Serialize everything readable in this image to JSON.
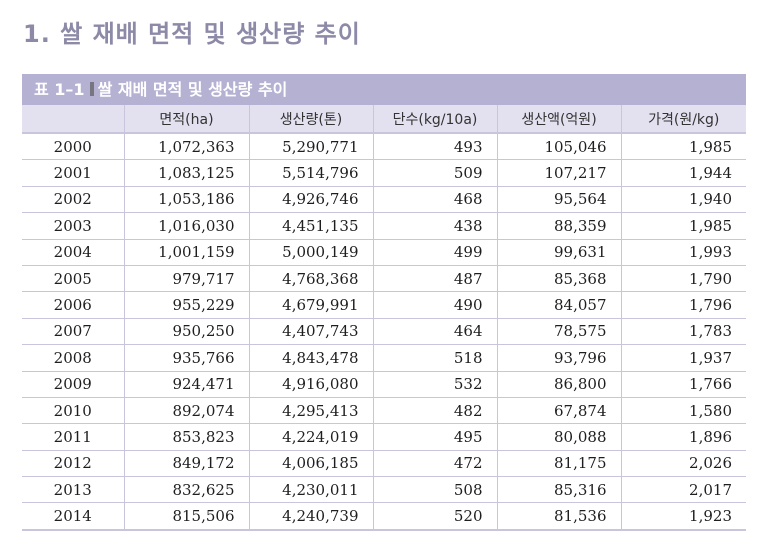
{
  "section": {
    "title": "1. 쌀 재배 면적 및 생산량 추이"
  },
  "table": {
    "label": "표 1–1",
    "title": "쌀 재배 면적 및 생산량 추이",
    "colors": {
      "caption_bg": "#b5b1d2",
      "header_bg": "#e3e1ef",
      "border": "#c8c5dd",
      "heading_text": "#8d8aa8"
    },
    "columns": [
      "",
      "면적(ha)",
      "생산량(톤)",
      "단수(kg/10a)",
      "생산액(억원)",
      "가격(원/kg)"
    ],
    "rows": [
      [
        "2000",
        "1,072,363",
        "5,290,771",
        "493",
        "105,046",
        "1,985"
      ],
      [
        "2001",
        "1,083,125",
        "5,514,796",
        "509",
        "107,217",
        "1,944"
      ],
      [
        "2002",
        "1,053,186",
        "4,926,746",
        "468",
        "95,564",
        "1,940"
      ],
      [
        "2003",
        "1,016,030",
        "4,451,135",
        "438",
        "88,359",
        "1,985"
      ],
      [
        "2004",
        "1,001,159",
        "5,000,149",
        "499",
        "99,631",
        "1,993"
      ],
      [
        "2005",
        "979,717",
        "4,768,368",
        "487",
        "85,368",
        "1,790"
      ],
      [
        "2006",
        "955,229",
        "4,679,991",
        "490",
        "84,057",
        "1,796"
      ],
      [
        "2007",
        "950,250",
        "4,407,743",
        "464",
        "78,575",
        "1,783"
      ],
      [
        "2008",
        "935,766",
        "4,843,478",
        "518",
        "93,796",
        "1,937"
      ],
      [
        "2009",
        "924,471",
        "4,916,080",
        "532",
        "86,800",
        "1,766"
      ],
      [
        "2010",
        "892,074",
        "4,295,413",
        "482",
        "67,874",
        "1,580"
      ],
      [
        "2011",
        "853,823",
        "4,224,019",
        "495",
        "80,088",
        "1,896"
      ],
      [
        "2012",
        "849,172",
        "4,006,185",
        "472",
        "81,175",
        "2,026"
      ],
      [
        "2013",
        "832,625",
        "4,230,011",
        "508",
        "85,316",
        "2,017"
      ],
      [
        "2014",
        "815,506",
        "4,240,739",
        "520",
        "81,536",
        "1,923"
      ]
    ]
  }
}
